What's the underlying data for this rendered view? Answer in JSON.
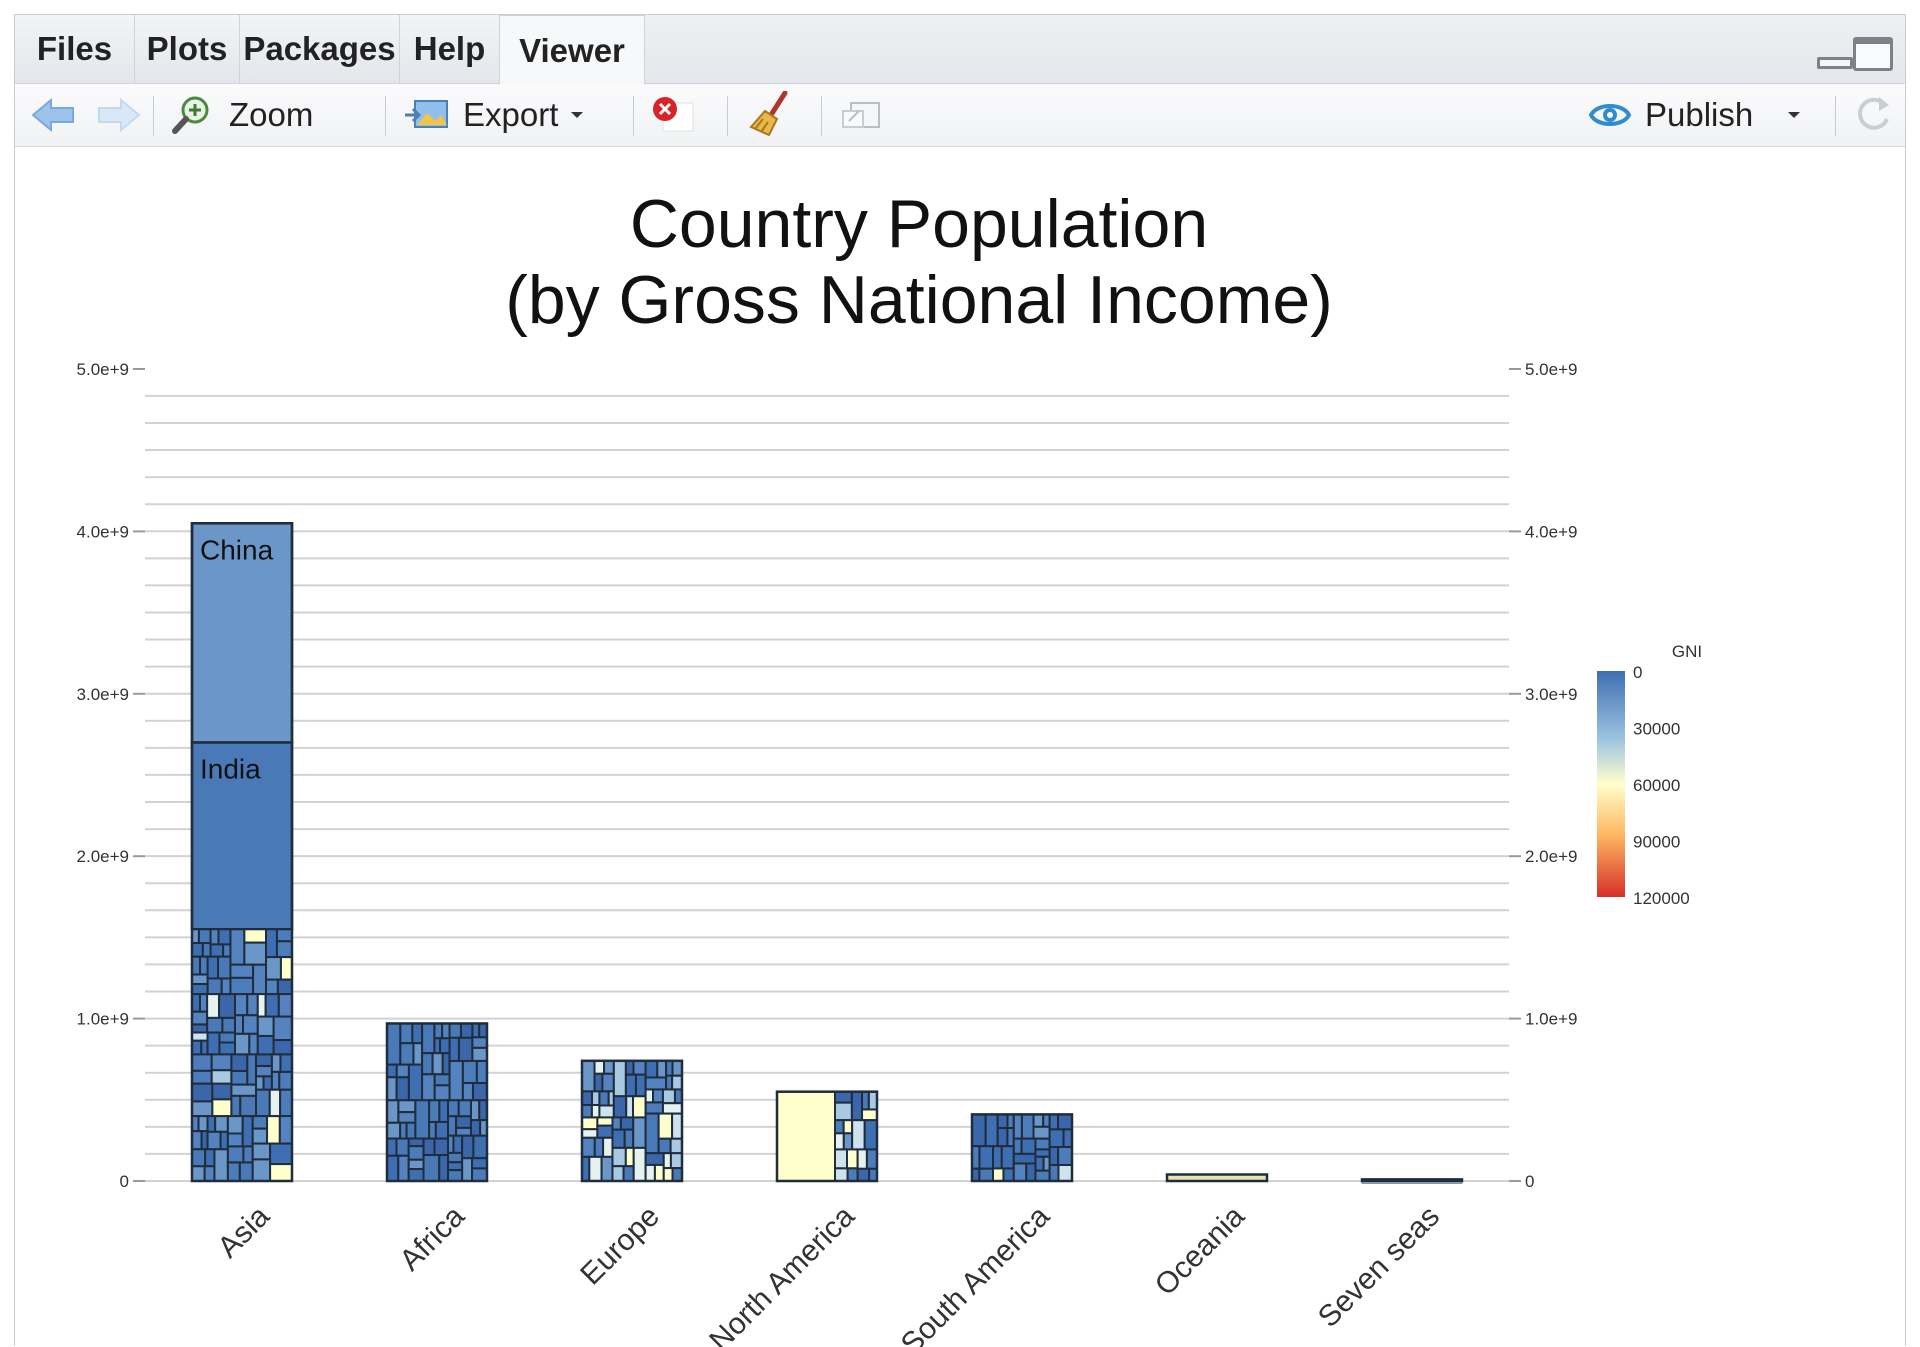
{
  "tabs": [
    {
      "label": "Files",
      "active": false
    },
    {
      "label": "Plots",
      "active": false
    },
    {
      "label": "Packages",
      "active": false
    },
    {
      "label": "Help",
      "active": false
    },
    {
      "label": "Viewer",
      "active": true
    }
  ],
  "toolbar": {
    "zoom_label": "Zoom",
    "export_label": "Export",
    "publish_label": "Publish",
    "icons": [
      "back-arrow-icon",
      "forward-arrow-icon",
      "zoom-icon",
      "export-icon",
      "remove-icon",
      "broom-icon",
      "popout-icon",
      "publish-icon",
      "refresh-icon"
    ]
  },
  "colors": {
    "low_gni": "#3f6fb3",
    "mid_gni": "#ffffcc",
    "high_gni": "#d73027"
  },
  "chart_data": {
    "type": "bar",
    "title_line1": "Country Population",
    "title_line2": "(by Gross National Income)",
    "categories": [
      "Asia",
      "Africa",
      "Europe",
      "North America",
      "South America",
      "Oceania",
      "Seven seas"
    ],
    "values": [
      4050000000.0,
      970000000.0,
      740000000.0,
      550000000.0,
      410000000.0,
      40000000.0,
      10000000.0
    ],
    "ylim": [
      0,
      5000000000.0
    ],
    "yticks": [
      0,
      1000000000.0,
      2000000000.0,
      3000000000.0,
      4000000000.0,
      5000000000.0
    ],
    "ytick_labels": [
      "0",
      "1.0e+9",
      "2.0e+9",
      "3.0e+9",
      "4.0e+9",
      "5.0e+9"
    ],
    "minor_grid_step": 166700000.0,
    "axes": "left-and-right",
    "labeled_segments": [
      {
        "category": "Asia",
        "name": "China",
        "from": 2700000000.0,
        "to": 4050000000.0,
        "color": "#6a97c8"
      },
      {
        "category": "Asia",
        "name": "India",
        "from": 1550000000.0,
        "to": 2700000000.0,
        "color": "#4a79b8"
      }
    ],
    "legend": {
      "title": "GNI",
      "ticks": [
        "0",
        "30000",
        "60000",
        "90000",
        "120000"
      ],
      "tick_values": [
        0,
        30000,
        60000,
        90000,
        120000
      ],
      "range": [
        0,
        120000
      ],
      "placement": "right"
    }
  }
}
